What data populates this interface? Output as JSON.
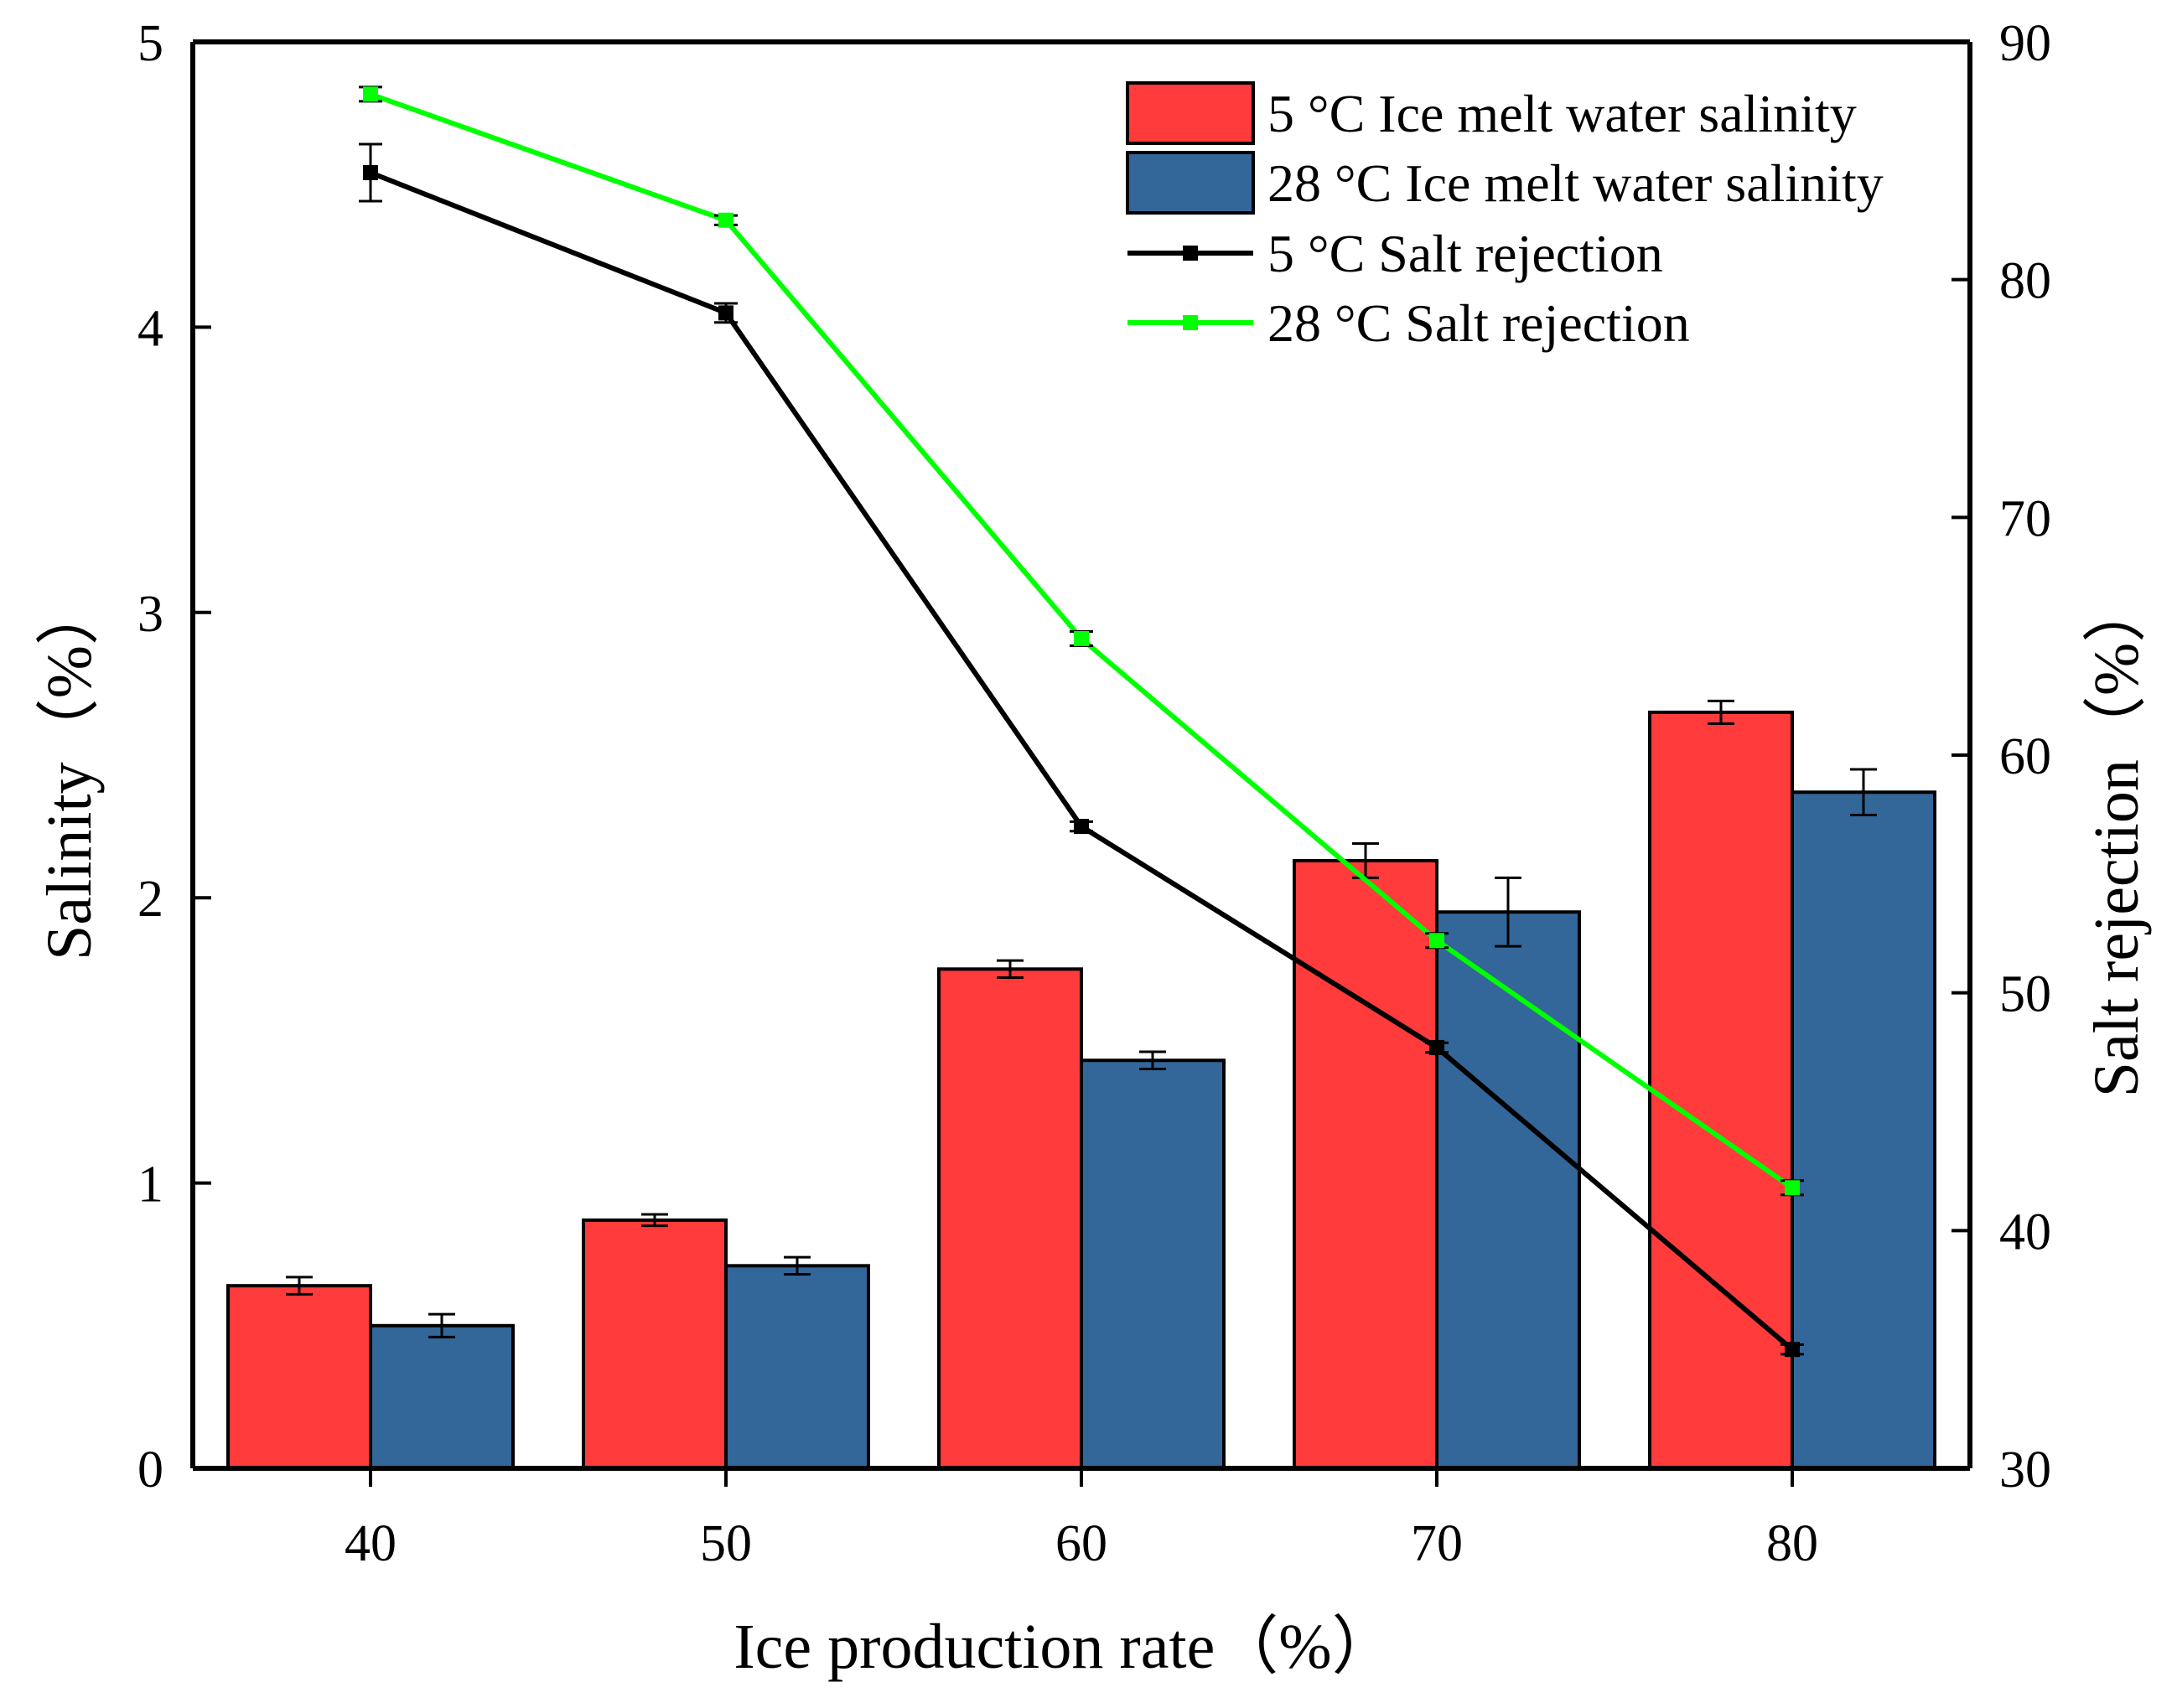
{
  "chart_data": {
    "type": "bar",
    "title": "",
    "xlabel": "Ice production rate（%）",
    "ylabel_left": "Salinity（%）",
    "ylabel_right": "Salt rejection（%）",
    "categories": [
      "40",
      "50",
      "60",
      "70",
      "80"
    ],
    "ylim_left": [
      0,
      5
    ],
    "yticks_left": [
      "0",
      "1",
      "2",
      "3",
      "4",
      "5"
    ],
    "ylim_right": [
      30,
      90
    ],
    "yticks_right": [
      "30",
      "40",
      "50",
      "60",
      "70",
      "80",
      "90"
    ],
    "grid": false,
    "legend_position": "top-right",
    "colors": {
      "red_bar": "#ff3b3b",
      "blue_bar": "#336699",
      "black_line": "#000000",
      "green_line": "#00ff00"
    },
    "bar_series": [
      {
        "name": "5 °C Ice melt water salinity",
        "axis": "left",
        "values": [
          0.64,
          0.87,
          1.75,
          2.13,
          2.65
        ],
        "errors": [
          0.03,
          0.02,
          0.03,
          0.06,
          0.04
        ]
      },
      {
        "name": "28 °C Ice melt water salinity",
        "axis": "left",
        "values": [
          0.5,
          0.71,
          1.43,
          1.95,
          2.37
        ],
        "errors": [
          0.04,
          0.03,
          0.03,
          0.12,
          0.08
        ]
      }
    ],
    "line_series": [
      {
        "name": "5 °C Salt rejection",
        "axis": "right",
        "values": [
          84.5,
          78.6,
          57.0,
          47.7,
          35.0
        ],
        "errors": [
          1.2,
          0.4,
          0.2,
          0.2,
          0.2
        ]
      },
      {
        "name": "28 °C Salt rejection",
        "axis": "right",
        "values": [
          87.8,
          82.5,
          64.9,
          52.2,
          41.8
        ],
        "errors": [
          0.3,
          0.2,
          0.3,
          0.3,
          0.3
        ]
      }
    ]
  }
}
